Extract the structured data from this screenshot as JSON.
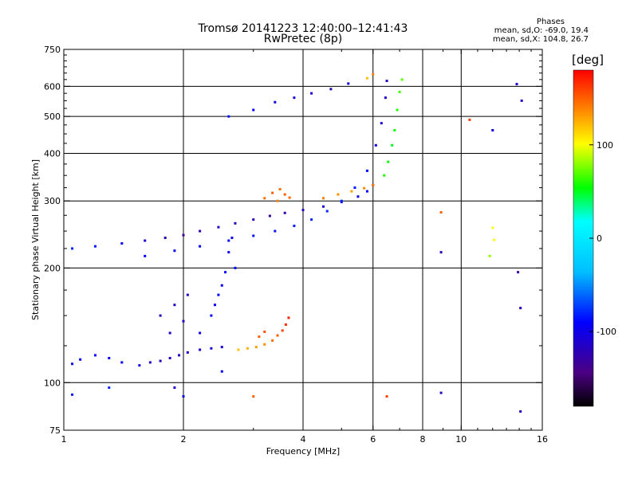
{
  "header": {
    "title_line1": "Tromsø 20141223 12:40:00–12:41:43",
    "title_line2": "RwPretec (8p)",
    "stats_title": "Phases",
    "stats_o": "mean, sd,O: -69.0, 19.4",
    "stats_x": "mean, sd,X: 104.8, 26.7"
  },
  "colorbar": {
    "title": "[deg]",
    "ticks": [
      {
        "value": 100,
        "label": "100"
      },
      {
        "value": 0,
        "label": "0"
      },
      {
        "value": -100,
        "label": "-100"
      }
    ],
    "range": [
      -180,
      180
    ]
  },
  "chart_data": {
    "type": "scatter",
    "title": "Tromsø 20141223 12:40:00–12:41:43",
    "subtitle": "RwPretec (8p)",
    "xlabel": "Frequency [MHz]",
    "ylabel": "Stationary phase Virtual Height [km]",
    "x_scale": "log",
    "y_scale": "log",
    "xlim": [
      1,
      16
    ],
    "ylim": [
      75,
      750
    ],
    "x_ticks": [
      {
        "value": 1,
        "label": "1"
      },
      {
        "value": 2,
        "label": "2"
      },
      {
        "value": 4,
        "label": "4"
      },
      {
        "value": 6,
        "label": "6"
      },
      {
        "value": 8,
        "label": "8"
      },
      {
        "value": 10,
        "label": "10"
      },
      {
        "value": 16,
        "label": "16"
      }
    ],
    "y_ticks": [
      {
        "value": 75,
        "label": "75"
      },
      {
        "value": 100,
        "label": "100"
      },
      {
        "value": 200,
        "label": "200"
      },
      {
        "value": 300,
        "label": "300"
      },
      {
        "value": 400,
        "label": "400"
      },
      {
        "value": 500,
        "label": "500"
      },
      {
        "value": 600,
        "label": "600"
      },
      {
        "value": 750,
        "label": "750"
      }
    ],
    "grid_x": [
      2,
      4,
      6,
      8,
      10
    ],
    "grid_y": [
      100,
      200,
      300,
      400,
      500,
      600
    ],
    "color_encoding": "phase [deg]",
    "series": [
      {
        "points": [
          [
            1.05,
            112,
            -100
          ],
          [
            1.1,
            115,
            -95
          ],
          [
            1.2,
            118,
            -90
          ],
          [
            1.3,
            116,
            -95
          ],
          [
            1.4,
            113,
            -90
          ],
          [
            1.55,
            111,
            -100
          ],
          [
            1.65,
            113,
            -115
          ],
          [
            1.75,
            114,
            -120
          ],
          [
            1.85,
            116,
            -120
          ],
          [
            1.95,
            118,
            -118
          ],
          [
            2.05,
            120,
            -115
          ],
          [
            2.2,
            122,
            -110
          ],
          [
            2.35,
            123,
            -108
          ],
          [
            2.5,
            124,
            -105
          ]
        ]
      },
      {
        "points": [
          [
            2.75,
            122,
            120
          ],
          [
            2.9,
            123,
            125
          ],
          [
            3.05,
            124,
            130
          ],
          [
            3.2,
            126,
            135
          ],
          [
            3.35,
            129,
            145
          ],
          [
            3.45,
            133,
            150
          ],
          [
            3.55,
            137,
            160
          ],
          [
            3.62,
            142,
            165
          ],
          [
            3.68,
            148,
            170
          ],
          [
            3.1,
            132,
            150
          ],
          [
            3.2,
            136,
            155
          ]
        ]
      },
      {
        "points": [
          [
            1.05,
            225,
            -80
          ],
          [
            1.2,
            228,
            -85
          ],
          [
            1.4,
            232,
            -95
          ],
          [
            1.6,
            236,
            -110
          ],
          [
            1.8,
            240,
            -125
          ],
          [
            2.0,
            244,
            -135
          ],
          [
            2.2,
            250,
            -125
          ],
          [
            2.45,
            256,
            -120
          ],
          [
            2.7,
            262,
            -118
          ],
          [
            3.0,
            268,
            -122
          ],
          [
            3.3,
            274,
            -128
          ],
          [
            3.6,
            279,
            -125
          ],
          [
            4.0,
            284,
            -120
          ],
          [
            4.5,
            290,
            -110
          ],
          [
            5.0,
            298,
            -100
          ],
          [
            5.5,
            308,
            -95
          ],
          [
            5.8,
            318,
            -90
          ],
          [
            6.0,
            330,
            -95
          ]
        ]
      },
      {
        "points": [
          [
            3.2,
            305,
            145
          ],
          [
            3.35,
            315,
            150
          ],
          [
            3.5,
            322,
            145
          ],
          [
            3.6,
            312,
            150
          ],
          [
            3.7,
            306,
            148
          ],
          [
            3.45,
            300,
            140
          ]
        ]
      },
      {
        "points": [
          [
            4.5,
            305,
            140
          ],
          [
            4.9,
            312,
            135
          ],
          [
            5.3,
            318,
            130
          ],
          [
            5.7,
            324,
            135
          ],
          [
            6.0,
            330,
            140
          ]
        ]
      },
      {
        "points": [
          [
            1.6,
            215,
            -95
          ],
          [
            1.9,
            222,
            -95
          ],
          [
            2.2,
            228,
            -90
          ],
          [
            2.6,
            236,
            -88
          ],
          [
            3.0,
            243,
            -85
          ],
          [
            3.4,
            250,
            -85
          ],
          [
            3.8,
            258,
            -82
          ],
          [
            4.2,
            268,
            -80
          ],
          [
            4.6,
            282,
            -78
          ],
          [
            5.0,
            300,
            -80
          ],
          [
            5.4,
            325,
            -85
          ],
          [
            5.8,
            360,
            -90
          ],
          [
            6.1,
            420,
            -100
          ],
          [
            6.3,
            480,
            -110
          ],
          [
            6.45,
            560,
            -115
          ],
          [
            6.5,
            620,
            -120
          ]
        ]
      },
      {
        "points": [
          [
            6.4,
            350,
            60
          ],
          [
            6.55,
            380,
            55
          ],
          [
            6.7,
            420,
            50
          ],
          [
            6.8,
            460,
            55
          ],
          [
            6.9,
            520,
            60
          ],
          [
            7.0,
            580,
            65
          ],
          [
            7.1,
            625,
            70
          ]
        ]
      },
      {
        "points": [
          [
            2.6,
            500,
            -85
          ],
          [
            3.0,
            520,
            -95
          ],
          [
            3.4,
            545,
            -100
          ],
          [
            3.8,
            560,
            -105
          ],
          [
            4.2,
            575,
            -110
          ],
          [
            4.7,
            590,
            -120
          ],
          [
            5.2,
            610,
            -105
          ],
          [
            5.8,
            630,
            120
          ],
          [
            6.0,
            645,
            140
          ]
        ]
      },
      {
        "points": [
          [
            2.2,
            135,
            -100
          ],
          [
            2.35,
            150,
            -95
          ],
          [
            2.45,
            170,
            -95
          ],
          [
            2.55,
            195,
            -95
          ],
          [
            2.6,
            220,
            -95
          ],
          [
            2.65,
            240,
            -100
          ],
          [
            2.5,
            180,
            -90
          ],
          [
            2.4,
            160,
            -92
          ],
          [
            2.7,
            200,
            -88
          ]
        ]
      },
      {
        "points": [
          [
            1.75,
            150,
            -120
          ],
          [
            1.9,
            160,
            -115
          ],
          [
            2.0,
            145,
            -110
          ],
          [
            1.85,
            135,
            -115
          ],
          [
            2.05,
            170,
            -112
          ]
        ]
      },
      {
        "points": [
          [
            1.05,
            93,
            -85
          ],
          [
            1.3,
            97,
            -80
          ],
          [
            1.9,
            97,
            -110
          ],
          [
            2.0,
            92,
            -100
          ],
          [
            2.5,
            107,
            -90
          ],
          [
            3.0,
            92,
            150
          ],
          [
            6.5,
            92,
            160
          ],
          [
            8.9,
            94,
            -120
          ],
          [
            14.1,
            84,
            -120
          ],
          [
            10.5,
            490,
            160
          ],
          [
            12.0,
            460,
            -100
          ],
          [
            13.8,
            608,
            -110
          ],
          [
            14.2,
            550,
            -115
          ],
          [
            12.0,
            255,
            100
          ],
          [
            12.1,
            237,
            100
          ],
          [
            11.8,
            215,
            80
          ],
          [
            13.9,
            195,
            -130
          ],
          [
            14.1,
            157,
            -120
          ],
          [
            8.9,
            220,
            -120
          ],
          [
            8.9,
            280,
            150
          ]
        ]
      }
    ]
  }
}
